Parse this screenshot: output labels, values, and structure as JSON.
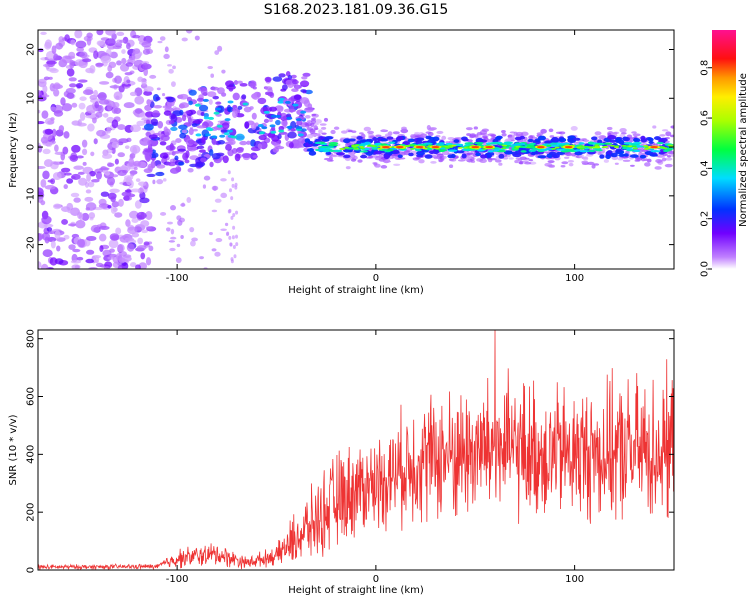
{
  "figure": {
    "title": "S168.2023.181.09.36.G15"
  },
  "chart_data": [
    {
      "type": "heatmap",
      "xlabel": "Height of straight line (km)",
      "ylabel": "Frequency (Hz)",
      "xlim": [
        -170,
        150
      ],
      "ylim": [
        -25,
        24
      ],
      "xticks": [
        -100,
        0,
        100
      ],
      "yticks": [
        -20,
        -10,
        0,
        10,
        20
      ],
      "colorbar": {
        "label": "Normalized spectral amplitude",
        "range": [
          0,
          0.95
        ],
        "ticks": [
          0.0,
          0.2,
          0.4,
          0.6,
          0.8
        ],
        "colormap": "white-purple-blue-cyan-green-yellow-red-magenta"
      },
      "regions": [
        {
          "x_range": [
            -170,
            -115
          ],
          "freq_range": [
            -25,
            24
          ],
          "amplitude_level": 0.15,
          "description_value": "scattered noise"
        },
        {
          "x_range": [
            -115,
            -35
          ],
          "freq_range": [
            -6,
            14
          ],
          "amplitude_level": 0.35
        },
        {
          "x_range": [
            -35,
            150
          ],
          "freq_range": [
            -3,
            3
          ],
          "center_freq": 0,
          "amplitude_level": 0.75
        }
      ],
      "peaks_x": [
        5,
        12,
        22,
        30,
        50,
        57,
        83,
        97,
        140
      ]
    },
    {
      "type": "line",
      "xlabel": "Height of straight line (km)",
      "ylabel": "SNR (10 * v/v)",
      "xlim": [
        -170,
        150
      ],
      "ylim": [
        0,
        830
      ],
      "xticks": [
        -100,
        0,
        100
      ],
      "yticks": [
        0,
        200,
        400,
        600,
        800
      ],
      "color": "#ee3333",
      "envelope": [
        {
          "x": -170,
          "mean": 10,
          "spread": 10
        },
        {
          "x": -110,
          "mean": 12,
          "spread": 10
        },
        {
          "x": -100,
          "mean": 40,
          "spread": 40
        },
        {
          "x": -80,
          "mean": 55,
          "spread": 50
        },
        {
          "x": -65,
          "mean": 25,
          "spread": 25
        },
        {
          "x": -50,
          "mean": 50,
          "spread": 40
        },
        {
          "x": -40,
          "mean": 110,
          "spread": 120
        },
        {
          "x": -30,
          "mean": 170,
          "spread": 160
        },
        {
          "x": -20,
          "mean": 240,
          "spread": 200
        },
        {
          "x": -10,
          "mean": 280,
          "spread": 200
        },
        {
          "x": 0,
          "mean": 300,
          "spread": 190
        },
        {
          "x": 20,
          "mean": 380,
          "spread": 260
        },
        {
          "x": 60,
          "mean": 420,
          "spread": 300
        },
        {
          "x": 100,
          "mean": 400,
          "spread": 280
        },
        {
          "x": 150,
          "mean": 420,
          "spread": 320
        }
      ],
      "peak": {
        "x": 60,
        "y": 830
      }
    }
  ]
}
